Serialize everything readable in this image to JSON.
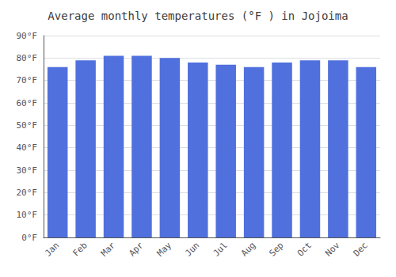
{
  "chart_data": {
    "type": "bar",
    "title": "Average monthly temperatures (°F ) in Jojoima",
    "categories": [
      "Jan",
      "Feb",
      "Mar",
      "Apr",
      "May",
      "Jun",
      "Jul",
      "Aug",
      "Sep",
      "Oct",
      "Nov",
      "Dec"
    ],
    "values": [
      76,
      79,
      81,
      81,
      80,
      78,
      77,
      76,
      78,
      79,
      79,
      76
    ],
    "ylim": [
      0,
      90
    ],
    "yticks": [
      {
        "value": 0,
        "label": "0°F"
      },
      {
        "value": 10,
        "label": "10°F"
      },
      {
        "value": 20,
        "label": "20°F"
      },
      {
        "value": 30,
        "label": "30°F"
      },
      {
        "value": 40,
        "label": "40°F"
      },
      {
        "value": 50,
        "label": "50°F"
      },
      {
        "value": 60,
        "label": "60°F"
      },
      {
        "value": 70,
        "label": "70°F"
      },
      {
        "value": 80,
        "label": "80°F"
      },
      {
        "value": 90,
        "label": "90°F"
      }
    ],
    "grid": true
  }
}
